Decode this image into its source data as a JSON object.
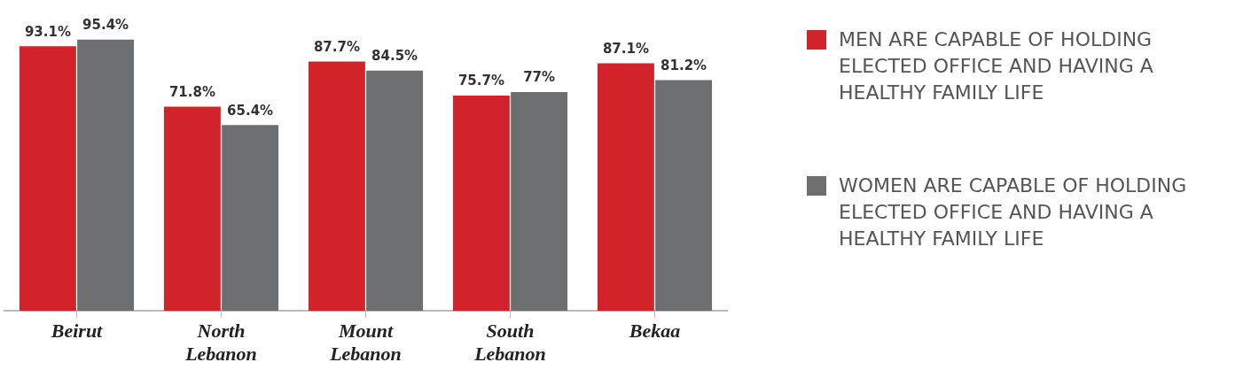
{
  "chart_data": {
    "type": "bar",
    "categories": [
      "Beirut",
      "North Lebanon",
      "Mount Lebanon",
      "South Lebanon",
      "Bekaa"
    ],
    "series": [
      {
        "name": "MEN ARE CAPABLE OF HOLDING ELECTED OFFICE AND HAVING A HEALTHY FAMILY LIFE",
        "color": "#d2232a",
        "values": [
          93.1,
          71.8,
          87.7,
          75.7,
          87.1
        ],
        "value_labels": [
          "93.1%",
          "71.8%",
          "87.7%",
          "75.7%",
          "87.1%"
        ]
      },
      {
        "name": "WOMEN ARE CAPABLE OF HOLDING ELECTED OFFICE AND HAVING A HEALTHY FAMILY LIFE",
        "color": "#6d6e70",
        "values": [
          95.4,
          65.4,
          84.5,
          77,
          81.2
        ],
        "value_labels": [
          "95.4%",
          "65.4%",
          "84.5%",
          "77%",
          "81.2%"
        ]
      }
    ],
    "grid": false,
    "legend": "right"
  }
}
